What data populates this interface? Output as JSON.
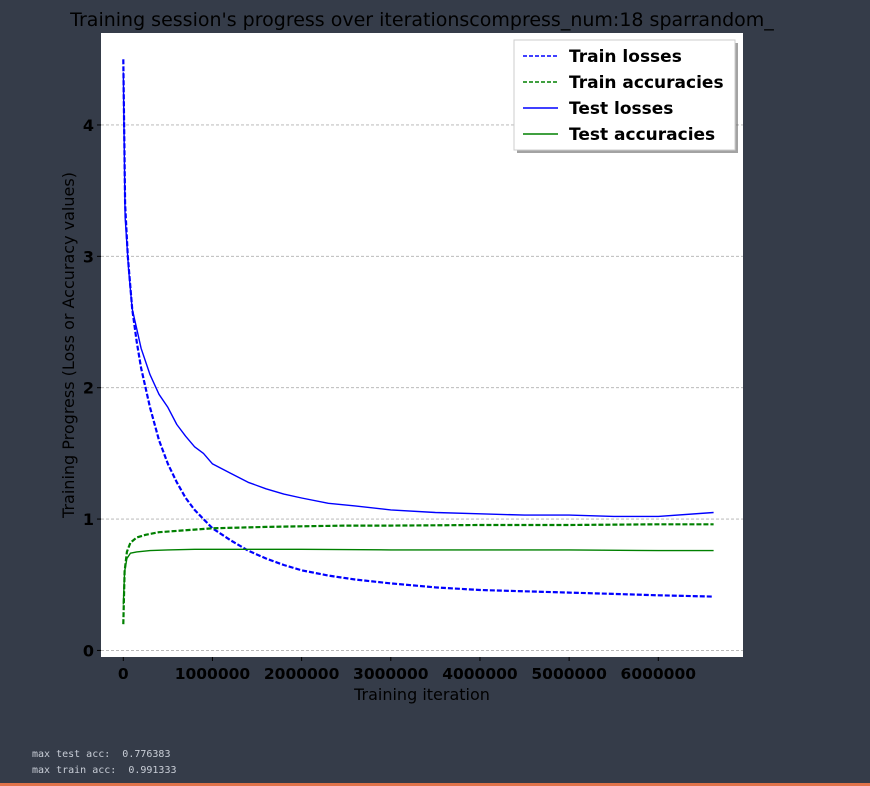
{
  "chart_data": {
    "type": "line",
    "title": "Training session's progress over iterationscompress_num:18 sparrandom_",
    "xlabel": "Training iteration",
    "ylabel": "Training Progress (Loss or Accuracy values)",
    "xlim": [
      -250000,
      6950000
    ],
    "ylim": [
      -0.05,
      4.7
    ],
    "x_ticks": [
      {
        "value": 0,
        "label": "0"
      },
      {
        "value": 1000000,
        "label": "1000000"
      },
      {
        "value": 2000000,
        "label": "2000000"
      },
      {
        "value": 3000000,
        "label": "3000000"
      },
      {
        "value": 4000000,
        "label": "4000000"
      },
      {
        "value": 5000000,
        "label": "5000000"
      },
      {
        "value": 6000000,
        "label": "6000000"
      }
    ],
    "y_ticks": [
      {
        "value": 0,
        "label": "0"
      },
      {
        "value": 1,
        "label": "1"
      },
      {
        "value": 2,
        "label": "2"
      },
      {
        "value": 3,
        "label": "3"
      },
      {
        "value": 4,
        "label": "4"
      }
    ],
    "grid": "horizontal",
    "legend_position": "top-right",
    "series": [
      {
        "name": "Train losses",
        "color": "#0000ff",
        "style": "dashed",
        "x": [
          0,
          20000,
          50000,
          100000,
          150000,
          200000,
          300000,
          400000,
          500000,
          600000,
          700000,
          800000,
          900000,
          1000000,
          1200000,
          1400000,
          1600000,
          1800000,
          2000000,
          2300000,
          2600000,
          3000000,
          3500000,
          4000000,
          4500000,
          5000000,
          5500000,
          6000000,
          6620000
        ],
        "y": [
          4.5,
          3.4,
          3.0,
          2.6,
          2.35,
          2.15,
          1.85,
          1.6,
          1.42,
          1.28,
          1.16,
          1.07,
          1.0,
          0.93,
          0.84,
          0.76,
          0.7,
          0.65,
          0.61,
          0.57,
          0.54,
          0.51,
          0.48,
          0.46,
          0.45,
          0.44,
          0.43,
          0.42,
          0.41
        ]
      },
      {
        "name": "Train accuracies",
        "color": "#008000",
        "style": "dashed",
        "x": [
          0,
          15000,
          40000,
          80000,
          150000,
          250000,
          400000,
          600000,
          800000,
          1000000,
          1300000,
          1600000,
          2000000,
          2500000,
          3000000,
          4000000,
          5000000,
          6000000,
          6620000
        ],
        "y": [
          0.2,
          0.6,
          0.75,
          0.82,
          0.86,
          0.88,
          0.9,
          0.91,
          0.92,
          0.93,
          0.935,
          0.94,
          0.945,
          0.95,
          0.95,
          0.955,
          0.955,
          0.96,
          0.96
        ]
      },
      {
        "name": "Test losses",
        "color": "#0000ff",
        "style": "solid",
        "x": [
          0,
          20000,
          60000,
          100000,
          150000,
          200000,
          300000,
          400000,
          500000,
          600000,
          700000,
          800000,
          900000,
          1000000,
          1200000,
          1400000,
          1600000,
          1800000,
          2000000,
          2300000,
          2600000,
          3000000,
          3500000,
          4000000,
          4500000,
          5000000,
          5500000,
          6000000,
          6620000
        ],
        "y": [
          4.4,
          3.3,
          2.9,
          2.6,
          2.45,
          2.3,
          2.1,
          1.95,
          1.85,
          1.72,
          1.63,
          1.55,
          1.5,
          1.42,
          1.35,
          1.28,
          1.23,
          1.19,
          1.16,
          1.12,
          1.1,
          1.07,
          1.05,
          1.04,
          1.03,
          1.03,
          1.02,
          1.02,
          1.05
        ]
      },
      {
        "name": "Test accuracies",
        "color": "#008000",
        "style": "solid",
        "x": [
          0,
          15000,
          40000,
          80000,
          150000,
          300000,
          500000,
          800000,
          1000000,
          1500000,
          2000000,
          3000000,
          4000000,
          5000000,
          6000000,
          6620000
        ],
        "y": [
          0.35,
          0.6,
          0.7,
          0.74,
          0.75,
          0.76,
          0.765,
          0.77,
          0.77,
          0.77,
          0.77,
          0.765,
          0.765,
          0.765,
          0.76,
          0.76
        ]
      }
    ]
  },
  "output": {
    "max_test_acc": "max test acc:  0.776383",
    "max_train_acc": "max train acc:  0.991333"
  }
}
